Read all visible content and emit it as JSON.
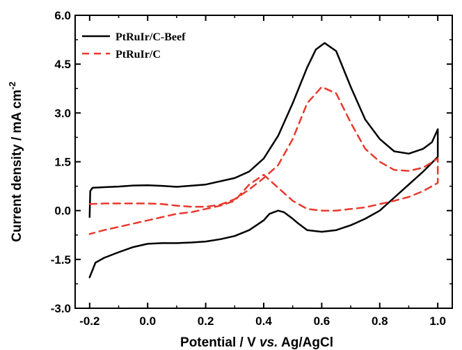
{
  "chart_data": {
    "type": "line",
    "xlabel": "Potential / V vs. Ag/AgCl",
    "xlabel_parts": {
      "pre": "Potential / V ",
      "italic": "vs.",
      "post": " Ag/AgCl"
    },
    "ylabel": "Current density / mA cm-2",
    "ylabel_parts": {
      "base": "Current density / mA cm",
      "sup": "-2"
    },
    "xlim": [
      -0.25,
      1.05
    ],
    "ylim": [
      -3.0,
      6.0
    ],
    "xticks": [
      -0.2,
      0.0,
      0.2,
      0.4,
      0.6,
      0.8,
      1.0
    ],
    "xtick_labels": [
      "-0.2",
      "0.0",
      "0.2",
      "0.4",
      "0.6",
      "0.8",
      "1.0"
    ],
    "yticks": [
      -3.0,
      -1.5,
      0.0,
      1.5,
      3.0,
      4.5,
      6.0
    ],
    "ytick_labels": [
      "-3.0",
      "-1.5",
      "0.0",
      "1.5",
      "3.0",
      "4.5",
      "6.0"
    ],
    "grid": false,
    "legend_position": "top-left",
    "series": [
      {
        "name": "PtRuIr/C-Beef",
        "color": "#000000",
        "line_style": "solid",
        "x": [
          -0.2,
          -0.198,
          -0.19,
          -0.15,
          -0.1,
          -0.05,
          0.0,
          0.05,
          0.1,
          0.2,
          0.3,
          0.35,
          0.4,
          0.45,
          0.5,
          0.55,
          0.58,
          0.61,
          0.65,
          0.7,
          0.75,
          0.8,
          0.85,
          0.9,
          0.95,
          0.98,
          1.0,
          1.0,
          0.95,
          0.9,
          0.85,
          0.8,
          0.75,
          0.7,
          0.65,
          0.6,
          0.55,
          0.52,
          0.5,
          0.47,
          0.45,
          0.42,
          0.4,
          0.35,
          0.3,
          0.25,
          0.2,
          0.15,
          0.1,
          0.05,
          0.0,
          -0.05,
          -0.1,
          -0.15,
          -0.18,
          -0.2
        ],
        "y": [
          -0.2,
          0.6,
          0.7,
          0.72,
          0.74,
          0.77,
          0.78,
          0.76,
          0.73,
          0.8,
          1.0,
          1.2,
          1.6,
          2.3,
          3.3,
          4.4,
          4.95,
          5.15,
          4.9,
          3.8,
          2.8,
          2.2,
          1.82,
          1.75,
          1.9,
          2.1,
          2.5,
          1.65,
          1.2,
          0.8,
          0.4,
          0.0,
          -0.25,
          -0.45,
          -0.6,
          -0.65,
          -0.6,
          -0.4,
          -0.25,
          -0.05,
          0.0,
          -0.1,
          -0.3,
          -0.6,
          -0.78,
          -0.88,
          -0.95,
          -0.98,
          -1.0,
          -1.0,
          -1.02,
          -1.12,
          -1.28,
          -1.45,
          -1.6,
          -2.05
        ]
      },
      {
        "name": "PtRuIr/C",
        "color": "#e8392d",
        "line_style": "dashed",
        "x": [
          -0.2,
          -0.15,
          -0.1,
          -0.05,
          0.0,
          0.05,
          0.1,
          0.15,
          0.2,
          0.25,
          0.3,
          0.35,
          0.4,
          0.45,
          0.5,
          0.55,
          0.6,
          0.65,
          0.7,
          0.75,
          0.8,
          0.85,
          0.9,
          0.95,
          1.0,
          1.0,
          0.95,
          0.9,
          0.85,
          0.8,
          0.75,
          0.7,
          0.65,
          0.6,
          0.55,
          0.5,
          0.45,
          0.4,
          0.35,
          0.3,
          0.25,
          0.2,
          0.15,
          0.1,
          0.05,
          0.0,
          -0.05,
          -0.1,
          -0.15,
          -0.2
        ],
        "y": [
          0.2,
          0.22,
          0.22,
          0.22,
          0.22,
          0.2,
          0.15,
          0.12,
          0.12,
          0.18,
          0.35,
          0.65,
          1.0,
          1.4,
          2.2,
          3.3,
          3.8,
          3.6,
          2.7,
          1.9,
          1.5,
          1.25,
          1.22,
          1.32,
          1.6,
          0.85,
          0.6,
          0.42,
          0.3,
          0.2,
          0.1,
          0.05,
          0.0,
          0.0,
          0.05,
          0.3,
          0.7,
          1.1,
          0.8,
          0.3,
          0.15,
          0.05,
          -0.05,
          -0.1,
          -0.2,
          -0.3,
          -0.4,
          -0.5,
          -0.6,
          -0.72
        ]
      }
    ]
  }
}
